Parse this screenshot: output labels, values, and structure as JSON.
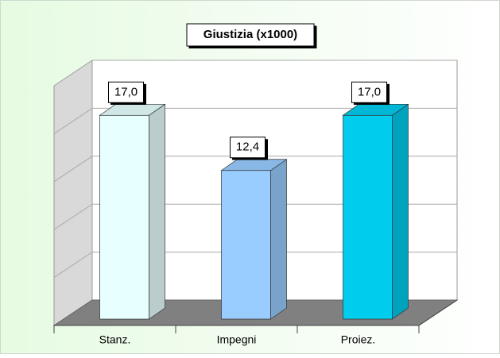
{
  "chart_data": {
    "type": "bar3d",
    "title": "Giustizia (x1000)",
    "categories": [
      "Stanz.",
      "Impegni",
      "Proiez."
    ],
    "values": [
      17.0,
      12.4,
      17.0
    ],
    "value_labels": [
      "17,0",
      "12,4",
      "17,0"
    ],
    "colors": [
      "#e8ffff",
      "#99ccff",
      "#00ccee"
    ],
    "ylim": [
      0,
      20
    ],
    "yticks": [
      0,
      4,
      8,
      12,
      16,
      20
    ],
    "grid": true
  }
}
